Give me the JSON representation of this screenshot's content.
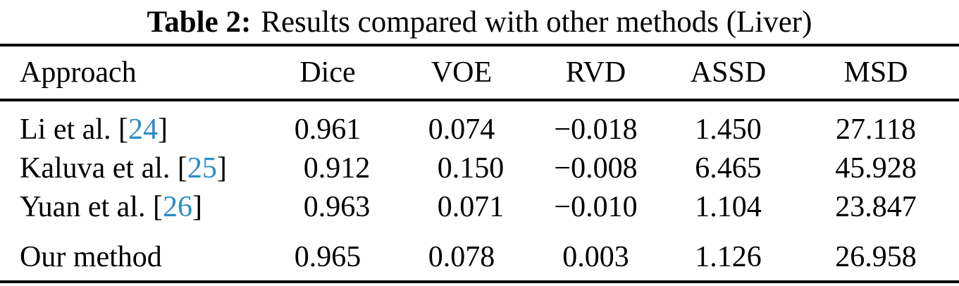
{
  "caption": {
    "label": "Table 2:",
    "text": "Results compared with other methods (Liver)"
  },
  "citation_format": {
    "open": "[",
    "close": "]"
  },
  "colors": {
    "text": "#000000",
    "background": "#ffffff",
    "rule": "#000000",
    "citation": "#2b8dc5"
  },
  "table": {
    "columns": [
      "Approach",
      "Dice",
      "VOE",
      "RVD",
      "ASSD",
      "MSD"
    ],
    "rows": [
      {
        "approach": "Li et al.",
        "citation": "24",
        "values": [
          "0.961",
          "0.074",
          "−0.018",
          "1.450",
          "27.118"
        ]
      },
      {
        "approach": "Kaluva et al.",
        "citation": "25",
        "values": [
          "0.912",
          "0.150",
          "−0.008",
          "6.465",
          "45.928"
        ]
      },
      {
        "approach": "Yuan et al.",
        "citation": "26",
        "values": [
          "0.963",
          "0.071",
          "−0.010",
          "1.104",
          "23.847"
        ]
      },
      {
        "approach": "Our method",
        "citation": null,
        "values": [
          "0.965",
          "0.078",
          "0.003",
          "1.126",
          "26.958"
        ]
      }
    ]
  }
}
